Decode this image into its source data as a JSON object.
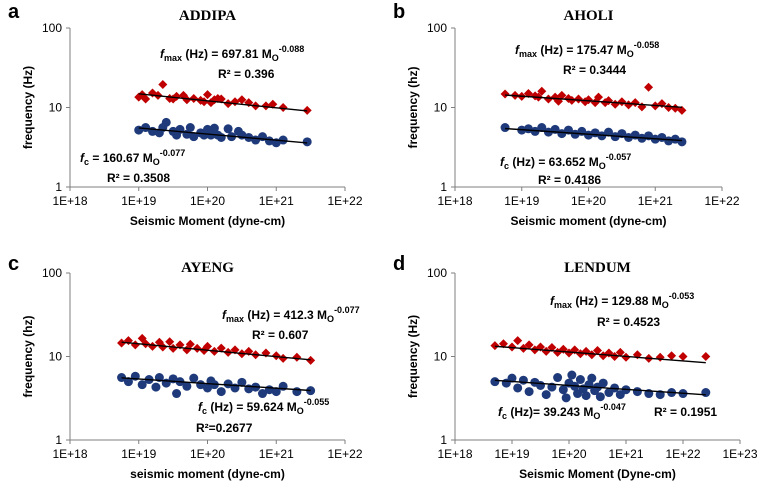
{
  "chart_data": [
    {
      "letter": "a",
      "title": "ADDIPA",
      "type": "scatter",
      "xlabel": "Seismic Moment (dyne-cm)",
      "ylabel": "frequency (Hz)",
      "xlim_exp": [
        18,
        22
      ],
      "ylim": [
        1,
        100
      ],
      "log_x": true,
      "log_y": true,
      "xticks": [
        "1E+18",
        "1E+19",
        "1E+20",
        "1E+21",
        "1E+22"
      ],
      "yticks": [
        "1",
        "10",
        "100"
      ],
      "fmax": {
        "A": 697.81,
        "b": -0.088,
        "coef": "697.81",
        "exp": "-0.088",
        "r2": "R² = 0.396",
        "xrange_exp": [
          19.0,
          21.45
        ],
        "color": "#c00000",
        "marker": "diamond",
        "points": [
          [
            19.0,
            13.5
          ],
          [
            19.05,
            14.5
          ],
          [
            19.1,
            12.8
          ],
          [
            19.2,
            15.2
          ],
          [
            19.28,
            14.2
          ],
          [
            19.35,
            19.5
          ],
          [
            19.45,
            13.0
          ],
          [
            19.5,
            12.8
          ],
          [
            19.55,
            13.8
          ],
          [
            19.65,
            14.2
          ],
          [
            19.7,
            12.5
          ],
          [
            19.8,
            13.0
          ],
          [
            19.9,
            12.3
          ],
          [
            19.95,
            11.8
          ],
          [
            20.0,
            14.5
          ],
          [
            20.05,
            11.5
          ],
          [
            20.1,
            12.5
          ],
          [
            20.15,
            13.0
          ],
          [
            20.2,
            12.8
          ],
          [
            20.3,
            11.2
          ],
          [
            20.4,
            11.8
          ],
          [
            20.5,
            12.5
          ],
          [
            20.6,
            11.5
          ],
          [
            20.7,
            10.5
          ],
          [
            20.85,
            10.5
          ],
          [
            20.95,
            11.0
          ],
          [
            21.1,
            10.0
          ],
          [
            21.45,
            9.2
          ]
        ]
      },
      "fc": {
        "A": 160.67,
        "b": -0.077,
        "coef": "160.67",
        "exp": "-0.077",
        "r2": "R² = 0.3508",
        "xrange_exp": [
          19.0,
          21.45
        ],
        "color": "#1f3a7a",
        "marker": "circle",
        "points": [
          [
            19.0,
            5.2
          ],
          [
            19.1,
            5.6
          ],
          [
            19.2,
            5.0
          ],
          [
            19.3,
            4.8
          ],
          [
            19.35,
            5.6
          ],
          [
            19.4,
            6.5
          ],
          [
            19.5,
            5.0
          ],
          [
            19.55,
            4.5
          ],
          [
            19.6,
            5.3
          ],
          [
            19.7,
            4.6
          ],
          [
            19.75,
            5.6
          ],
          [
            19.8,
            4.3
          ],
          [
            19.9,
            4.8
          ],
          [
            19.95,
            4.5
          ],
          [
            20.0,
            5.3
          ],
          [
            20.05,
            4.5
          ],
          [
            20.1,
            5.5
          ],
          [
            20.15,
            4.5
          ],
          [
            20.2,
            4.2
          ],
          [
            20.3,
            5.4
          ],
          [
            20.35,
            4.3
          ],
          [
            20.45,
            5.0
          ],
          [
            20.5,
            4.5
          ],
          [
            20.6,
            4.2
          ],
          [
            20.7,
            3.9
          ],
          [
            20.8,
            4.3
          ],
          [
            20.9,
            3.8
          ],
          [
            21.0,
            3.6
          ],
          [
            21.1,
            3.9
          ],
          [
            21.45,
            3.7
          ]
        ]
      }
    },
    {
      "letter": "b",
      "title": "AHOLI",
      "type": "scatter",
      "xlabel": "Seismic moment (dyne-cm)",
      "ylabel": "frequency (hz)",
      "xlim_exp": [
        18,
        22
      ],
      "ylim": [
        1,
        100
      ],
      "log_x": true,
      "log_y": true,
      "xticks": [
        "1E+18",
        "1E+19",
        "1E+20",
        "1E+21",
        "1E+22"
      ],
      "yticks": [
        "1",
        "10",
        "100"
      ],
      "fmax": {
        "A": 175.47,
        "b": -0.058,
        "coef": "175.47",
        "exp": "-0.058",
        "r2": "R² = 0.3444",
        "xrange_exp": [
          18.75,
          21.4
        ],
        "color": "#c00000",
        "marker": "diamond",
        "points": [
          [
            18.75,
            14.8
          ],
          [
            18.9,
            14.2
          ],
          [
            19.0,
            13.8
          ],
          [
            19.1,
            15.0
          ],
          [
            19.2,
            14.0
          ],
          [
            19.25,
            13.5
          ],
          [
            19.3,
            16.0
          ],
          [
            19.4,
            12.8
          ],
          [
            19.5,
            13.5
          ],
          [
            19.55,
            12.0
          ],
          [
            19.6,
            14.2
          ],
          [
            19.7,
            13.0
          ],
          [
            19.75,
            12.3
          ],
          [
            19.85,
            12.8
          ],
          [
            19.95,
            11.8
          ],
          [
            20.0,
            12.5
          ],
          [
            20.1,
            11.5
          ],
          [
            20.15,
            13.5
          ],
          [
            20.25,
            11.5
          ],
          [
            20.3,
            12.2
          ],
          [
            20.4,
            11.0
          ],
          [
            20.5,
            11.8
          ],
          [
            20.6,
            10.8
          ],
          [
            20.7,
            11.5
          ],
          [
            20.8,
            10.2
          ],
          [
            20.9,
            18.0
          ],
          [
            21.0,
            10.5
          ],
          [
            21.1,
            11.2
          ],
          [
            21.2,
            10.0
          ],
          [
            21.3,
            9.8
          ],
          [
            21.4,
            9.2
          ]
        ]
      },
      "fc": {
        "A": 63.652,
        "b": -0.057,
        "coef": "63.652",
        "exp": "-0.057",
        "r2": "R² = 0.4186",
        "xrange_exp": [
          18.75,
          21.4
        ],
        "color": "#1f3a7a",
        "marker": "circle",
        "points": [
          [
            18.75,
            5.6
          ],
          [
            19.0,
            5.2
          ],
          [
            19.1,
            5.4
          ],
          [
            19.2,
            5.0
          ],
          [
            19.3,
            5.6
          ],
          [
            19.4,
            4.9
          ],
          [
            19.5,
            5.3
          ],
          [
            19.6,
            4.7
          ],
          [
            19.7,
            5.2
          ],
          [
            19.8,
            4.6
          ],
          [
            19.9,
            5.0
          ],
          [
            20.0,
            4.5
          ],
          [
            20.1,
            4.8
          ],
          [
            20.2,
            4.4
          ],
          [
            20.3,
            4.9
          ],
          [
            20.4,
            4.3
          ],
          [
            20.5,
            4.7
          ],
          [
            20.6,
            4.2
          ],
          [
            20.7,
            4.5
          ],
          [
            20.8,
            4.1
          ],
          [
            20.9,
            4.4
          ],
          [
            21.0,
            4.0
          ],
          [
            21.1,
            4.2
          ],
          [
            21.2,
            3.8
          ],
          [
            21.3,
            4.0
          ],
          [
            21.4,
            3.7
          ]
        ]
      }
    },
    {
      "letter": "c",
      "title": "AYENG",
      "type": "scatter",
      "xlabel": "seismic moment (dyne-cm)",
      "ylabel": "frequency (hz)",
      "xlim_exp": [
        18,
        22
      ],
      "ylim": [
        1,
        100
      ],
      "log_x": true,
      "log_y": true,
      "xticks": [
        "1E+18",
        "1E+19",
        "1E+20",
        "1E+21",
        "1E+22"
      ],
      "yticks": [
        "1",
        "10",
        "100"
      ],
      "fmax": {
        "A": 412.3,
        "b": -0.077,
        "coef": "412.3",
        "exp": "-0.077",
        "r2": "R² = 0.607",
        "xrange_exp": [
          18.75,
          21.5
        ],
        "color": "#c00000",
        "marker": "diamond",
        "points": [
          [
            18.75,
            14.5
          ],
          [
            18.85,
            15.5
          ],
          [
            18.95,
            13.8
          ],
          [
            19.05,
            16.5
          ],
          [
            19.1,
            14.2
          ],
          [
            19.2,
            13.2
          ],
          [
            19.3,
            14.8
          ],
          [
            19.35,
            13.0
          ],
          [
            19.45,
            15.0
          ],
          [
            19.5,
            12.5
          ],
          [
            19.6,
            13.8
          ],
          [
            19.7,
            12.0
          ],
          [
            19.75,
            14.0
          ],
          [
            19.85,
            12.5
          ],
          [
            19.95,
            11.8
          ],
          [
            20.0,
            13.2
          ],
          [
            20.1,
            11.5
          ],
          [
            20.2,
            12.6
          ],
          [
            20.3,
            11.2
          ],
          [
            20.4,
            12.0
          ],
          [
            20.5,
            10.8
          ],
          [
            20.6,
            11.5
          ],
          [
            20.7,
            10.5
          ],
          [
            20.85,
            11.0
          ],
          [
            21.0,
            10.2
          ],
          [
            21.1,
            9.5
          ],
          [
            21.3,
            9.8
          ],
          [
            21.5,
            9.0
          ]
        ]
      },
      "fc": {
        "A": 59.624,
        "b": -0.055,
        "coef": "59.624",
        "exp": "-0.055",
        "r2": "R²=0.2677",
        "xrange_exp": [
          18.75,
          21.5
        ],
        "color": "#1f3a7a",
        "marker": "circle",
        "points": [
          [
            18.75,
            5.6
          ],
          [
            18.85,
            5.0
          ],
          [
            18.95,
            5.8
          ],
          [
            19.05,
            4.6
          ],
          [
            19.15,
            5.3
          ],
          [
            19.25,
            4.3
          ],
          [
            19.3,
            5.6
          ],
          [
            19.4,
            4.8
          ],
          [
            19.5,
            5.4
          ],
          [
            19.55,
            3.6
          ],
          [
            19.6,
            5.0
          ],
          [
            19.7,
            4.4
          ],
          [
            19.8,
            5.5
          ],
          [
            19.9,
            4.6
          ],
          [
            20.0,
            4.2
          ],
          [
            20.05,
            5.1
          ],
          [
            20.1,
            4.6
          ],
          [
            20.2,
            3.8
          ],
          [
            20.3,
            4.7
          ],
          [
            20.4,
            4.2
          ],
          [
            20.5,
            4.9
          ],
          [
            20.6,
            4.1
          ],
          [
            20.7,
            4.3
          ],
          [
            20.8,
            3.6
          ],
          [
            20.9,
            4.0
          ],
          [
            21.0,
            3.8
          ],
          [
            21.1,
            4.4
          ],
          [
            21.3,
            3.8
          ],
          [
            21.5,
            3.9
          ]
        ]
      }
    },
    {
      "letter": "d",
      "title": "LENDUM",
      "type": "scatter",
      "xlabel": "Seismic Moment (Dyne-cm)",
      "ylabel": "frequency (Hz)",
      "xlim_exp": [
        18,
        23
      ],
      "ylim": [
        1,
        100
      ],
      "log_x": true,
      "log_y": true,
      "xticks": [
        "1E+18",
        "1E+19",
        "1E+20",
        "1E+21",
        "1E+22",
        "1E+23"
      ],
      "yticks": [
        "1",
        "10",
        "100"
      ],
      "fmax": {
        "A": 129.88,
        "b": -0.053,
        "coef": "129.88",
        "exp": "-0.053",
        "r2": "R² = 0.4523",
        "xrange_exp": [
          18.7,
          22.4
        ],
        "color": "#c00000",
        "marker": "diamond",
        "points": [
          [
            18.7,
            13.5
          ],
          [
            18.85,
            14.2
          ],
          [
            19.0,
            13.0
          ],
          [
            19.1,
            15.5
          ],
          [
            19.2,
            12.5
          ],
          [
            19.3,
            13.8
          ],
          [
            19.4,
            12.0
          ],
          [
            19.5,
            13.0
          ],
          [
            19.6,
            11.5
          ],
          [
            19.7,
            12.8
          ],
          [
            19.8,
            11.2
          ],
          [
            19.9,
            12.2
          ],
          [
            20.0,
            11.0
          ],
          [
            20.1,
            12.0
          ],
          [
            20.2,
            10.8
          ],
          [
            20.3,
            11.5
          ],
          [
            20.4,
            10.5
          ],
          [
            20.5,
            11.8
          ],
          [
            20.6,
            10.2
          ],
          [
            20.7,
            11.0
          ],
          [
            20.8,
            10.0
          ],
          [
            20.9,
            11.2
          ],
          [
            21.0,
            9.8
          ],
          [
            21.2,
            10.5
          ],
          [
            21.4,
            9.5
          ],
          [
            21.6,
            9.8
          ],
          [
            21.8,
            10.2
          ],
          [
            22.0,
            10.0
          ],
          [
            22.4,
            10.0
          ]
        ]
      },
      "fc": {
        "A": 39.243,
        "b": -0.047,
        "coef": "39.243",
        "exp": "-0.047",
        "r2": "R² = 0.1951",
        "xrange_exp": [
          18.7,
          22.4
        ],
        "color": "#1f3a7a",
        "marker": "circle",
        "points": [
          [
            18.7,
            5.0
          ],
          [
            18.9,
            4.8
          ],
          [
            19.0,
            5.5
          ],
          [
            19.1,
            4.2
          ],
          [
            19.2,
            5.2
          ],
          [
            19.3,
            3.8
          ],
          [
            19.4,
            4.9
          ],
          [
            19.5,
            4.5
          ],
          [
            19.6,
            3.5
          ],
          [
            19.7,
            4.3
          ],
          [
            19.8,
            5.6
          ],
          [
            19.9,
            4.0
          ],
          [
            19.95,
            3.2
          ],
          [
            20.0,
            4.8
          ],
          [
            20.05,
            6.0
          ],
          [
            20.1,
            4.4
          ],
          [
            20.15,
            3.6
          ],
          [
            20.2,
            5.3
          ],
          [
            20.25,
            4.1
          ],
          [
            20.3,
            3.4
          ],
          [
            20.35,
            4.6
          ],
          [
            20.4,
            5.5
          ],
          [
            20.45,
            3.9
          ],
          [
            20.5,
            4.3
          ],
          [
            20.55,
            3.3
          ],
          [
            20.6,
            4.8
          ],
          [
            20.7,
            3.7
          ],
          [
            20.8,
            4.2
          ],
          [
            20.9,
            3.5
          ],
          [
            21.0,
            4.0
          ],
          [
            21.2,
            3.8
          ],
          [
            21.4,
            3.6
          ],
          [
            21.6,
            3.5
          ],
          [
            21.8,
            3.7
          ],
          [
            22.0,
            3.6
          ],
          [
            22.4,
            3.7
          ]
        ]
      }
    }
  ]
}
